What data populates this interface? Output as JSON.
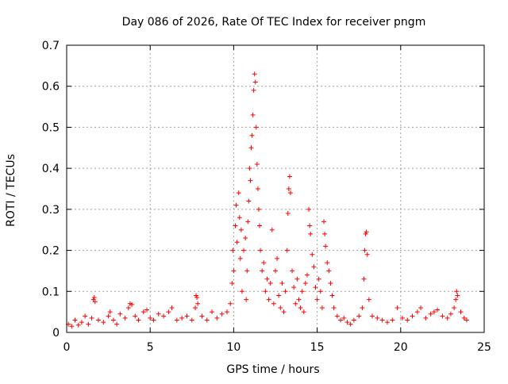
{
  "chart_data": {
    "type": "scatter",
    "title": "Day 086 of 2026, Rate Of TEC Index for receiver pngm",
    "xlabel": "GPS time / hours",
    "ylabel": "ROTI / TECUs",
    "xlim": [
      0,
      25
    ],
    "ylim": [
      0,
      0.7
    ],
    "x_ticks": [
      0,
      5,
      10,
      15,
      20,
      25
    ],
    "x_tick_labels": [
      "0",
      "5",
      "10",
      "15",
      "20",
      "25"
    ],
    "y_ticks": [
      0,
      0.1,
      0.2,
      0.3,
      0.4,
      0.5,
      0.6,
      0.7
    ],
    "y_tick_labels": [
      "0",
      "0.1",
      "0.2",
      "0.3",
      "0.4",
      "0.5",
      "0.6",
      "0.7"
    ],
    "grid": true,
    "marker": "+",
    "series": [
      {
        "name": "ROTI",
        "color": "#ff0000",
        "points": [
          [
            0.1,
            0.02
          ],
          [
            0.3,
            0.015
          ],
          [
            0.5,
            0.03
          ],
          [
            0.7,
            0.018
          ],
          [
            0.9,
            0.025
          ],
          [
            1.1,
            0.04
          ],
          [
            1.3,
            0.02
          ],
          [
            1.5,
            0.035
          ],
          [
            1.6,
            0.08
          ],
          [
            1.65,
            0.085
          ],
          [
            1.7,
            0.075
          ],
          [
            1.9,
            0.03
          ],
          [
            2.2,
            0.025
          ],
          [
            2.5,
            0.04
          ],
          [
            2.6,
            0.05
          ],
          [
            2.8,
            0.03
          ],
          [
            3.0,
            0.02
          ],
          [
            3.2,
            0.045
          ],
          [
            3.5,
            0.035
          ],
          [
            3.7,
            0.06
          ],
          [
            3.8,
            0.07
          ],
          [
            3.9,
            0.068
          ],
          [
            4.1,
            0.04
          ],
          [
            4.3,
            0.03
          ],
          [
            4.6,
            0.05
          ],
          [
            4.8,
            0.055
          ],
          [
            5.0,
            0.035
          ],
          [
            5.2,
            0.03
          ],
          [
            5.5,
            0.045
          ],
          [
            5.8,
            0.04
          ],
          [
            6.1,
            0.05
          ],
          [
            6.3,
            0.06
          ],
          [
            6.6,
            0.03
          ],
          [
            6.9,
            0.035
          ],
          [
            7.2,
            0.04
          ],
          [
            7.5,
            0.03
          ],
          [
            7.7,
            0.06
          ],
          [
            7.75,
            0.09
          ],
          [
            7.8,
            0.085
          ],
          [
            7.85,
            0.07
          ],
          [
            8.1,
            0.04
          ],
          [
            8.4,
            0.03
          ],
          [
            8.7,
            0.05
          ],
          [
            9.0,
            0.035
          ],
          [
            9.3,
            0.045
          ],
          [
            9.6,
            0.05
          ],
          [
            9.8,
            0.07
          ],
          [
            9.9,
            0.12
          ],
          [
            9.95,
            0.2
          ],
          [
            10.0,
            0.15
          ],
          [
            10.1,
            0.26
          ],
          [
            10.15,
            0.31
          ],
          [
            10.2,
            0.22
          ],
          [
            10.3,
            0.34
          ],
          [
            10.35,
            0.28
          ],
          [
            10.4,
            0.18
          ],
          [
            10.45,
            0.25
          ],
          [
            10.5,
            0.1
          ],
          [
            10.6,
            0.2
          ],
          [
            10.7,
            0.23
          ],
          [
            10.75,
            0.08
          ],
          [
            10.8,
            0.15
          ],
          [
            10.85,
            0.27
          ],
          [
            10.9,
            0.32
          ],
          [
            10.95,
            0.4
          ],
          [
            11.0,
            0.37
          ],
          [
            11.05,
            0.45
          ],
          [
            11.1,
            0.48
          ],
          [
            11.15,
            0.53
          ],
          [
            11.2,
            0.59
          ],
          [
            11.25,
            0.63
          ],
          [
            11.3,
            0.61
          ],
          [
            11.35,
            0.5
          ],
          [
            11.4,
            0.41
          ],
          [
            11.45,
            0.35
          ],
          [
            11.5,
            0.3
          ],
          [
            11.55,
            0.26
          ],
          [
            11.6,
            0.2
          ],
          [
            11.7,
            0.15
          ],
          [
            11.8,
            0.17
          ],
          [
            11.9,
            0.1
          ],
          [
            12.0,
            0.13
          ],
          [
            12.1,
            0.08
          ],
          [
            12.2,
            0.12
          ],
          [
            12.3,
            0.25
          ],
          [
            12.4,
            0.07
          ],
          [
            12.5,
            0.15
          ],
          [
            12.6,
            0.18
          ],
          [
            12.7,
            0.09
          ],
          [
            12.8,
            0.06
          ],
          [
            12.9,
            0.12
          ],
          [
            13.0,
            0.05
          ],
          [
            13.1,
            0.1
          ],
          [
            13.2,
            0.2
          ],
          [
            13.25,
            0.29
          ],
          [
            13.3,
            0.35
          ],
          [
            13.35,
            0.38
          ],
          [
            13.4,
            0.34
          ],
          [
            13.5,
            0.15
          ],
          [
            13.6,
            0.11
          ],
          [
            13.7,
            0.07
          ],
          [
            13.8,
            0.13
          ],
          [
            13.9,
            0.08
          ],
          [
            14.0,
            0.06
          ],
          [
            14.1,
            0.1
          ],
          [
            14.2,
            0.05
          ],
          [
            14.3,
            0.12
          ],
          [
            14.4,
            0.14
          ],
          [
            14.5,
            0.3
          ],
          [
            14.55,
            0.26
          ],
          [
            14.6,
            0.24
          ],
          [
            14.7,
            0.19
          ],
          [
            14.8,
            0.16
          ],
          [
            14.9,
            0.11
          ],
          [
            15.0,
            0.08
          ],
          [
            15.1,
            0.13
          ],
          [
            15.2,
            0.1
          ],
          [
            15.3,
            0.06
          ],
          [
            15.4,
            0.27
          ],
          [
            15.45,
            0.24
          ],
          [
            15.5,
            0.21
          ],
          [
            15.6,
            0.17
          ],
          [
            15.7,
            0.15
          ],
          [
            15.8,
            0.12
          ],
          [
            15.9,
            0.09
          ],
          [
            16.0,
            0.06
          ],
          [
            16.2,
            0.04
          ],
          [
            16.4,
            0.03
          ],
          [
            16.6,
            0.035
          ],
          [
            16.8,
            0.025
          ],
          [
            17.0,
            0.02
          ],
          [
            17.2,
            0.03
          ],
          [
            17.5,
            0.04
          ],
          [
            17.7,
            0.06
          ],
          [
            17.8,
            0.13
          ],
          [
            17.85,
            0.2
          ],
          [
            17.9,
            0.24
          ],
          [
            17.95,
            0.245
          ],
          [
            18.0,
            0.19
          ],
          [
            18.1,
            0.08
          ],
          [
            18.3,
            0.04
          ],
          [
            18.6,
            0.035
          ],
          [
            18.9,
            0.03
          ],
          [
            19.2,
            0.025
          ],
          [
            19.5,
            0.03
          ],
          [
            19.8,
            0.06
          ],
          [
            20.1,
            0.035
          ],
          [
            20.4,
            0.03
          ],
          [
            20.7,
            0.04
          ],
          [
            21.0,
            0.05
          ],
          [
            21.2,
            0.06
          ],
          [
            21.5,
            0.035
          ],
          [
            21.8,
            0.045
          ],
          [
            22.0,
            0.05
          ],
          [
            22.2,
            0.055
          ],
          [
            22.5,
            0.04
          ],
          [
            22.8,
            0.035
          ],
          [
            23.0,
            0.045
          ],
          [
            23.2,
            0.06
          ],
          [
            23.3,
            0.08
          ],
          [
            23.35,
            0.1
          ],
          [
            23.4,
            0.09
          ],
          [
            23.6,
            0.05
          ],
          [
            23.8,
            0.035
          ],
          [
            23.95,
            0.03
          ]
        ]
      }
    ]
  }
}
